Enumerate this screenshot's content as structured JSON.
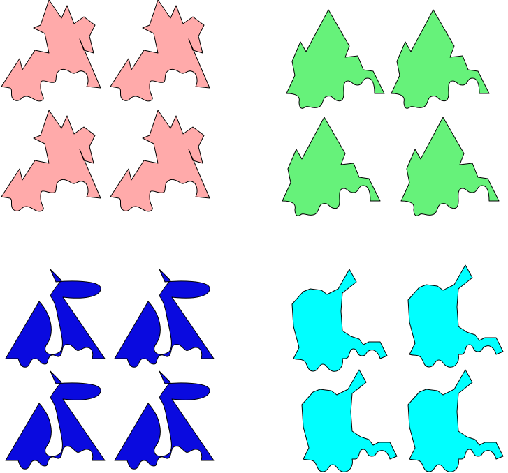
{
  "colors": {
    "background": "#ffffff",
    "outline": "#000000",
    "pink": "#ffaaaa",
    "green": "#66f27a",
    "blue": "#0a0adf",
    "cyan": "#00ffff"
  },
  "groups": [
    {
      "name": "pink-shape-group",
      "color_key": "pink",
      "count": 4
    },
    {
      "name": "green-shape-group",
      "color_key": "green",
      "count": 4
    },
    {
      "name": "blue-shape-group",
      "color_key": "blue",
      "count": 4
    },
    {
      "name": "cyan-shape-group",
      "color_key": "cyan",
      "count": 4
    }
  ]
}
